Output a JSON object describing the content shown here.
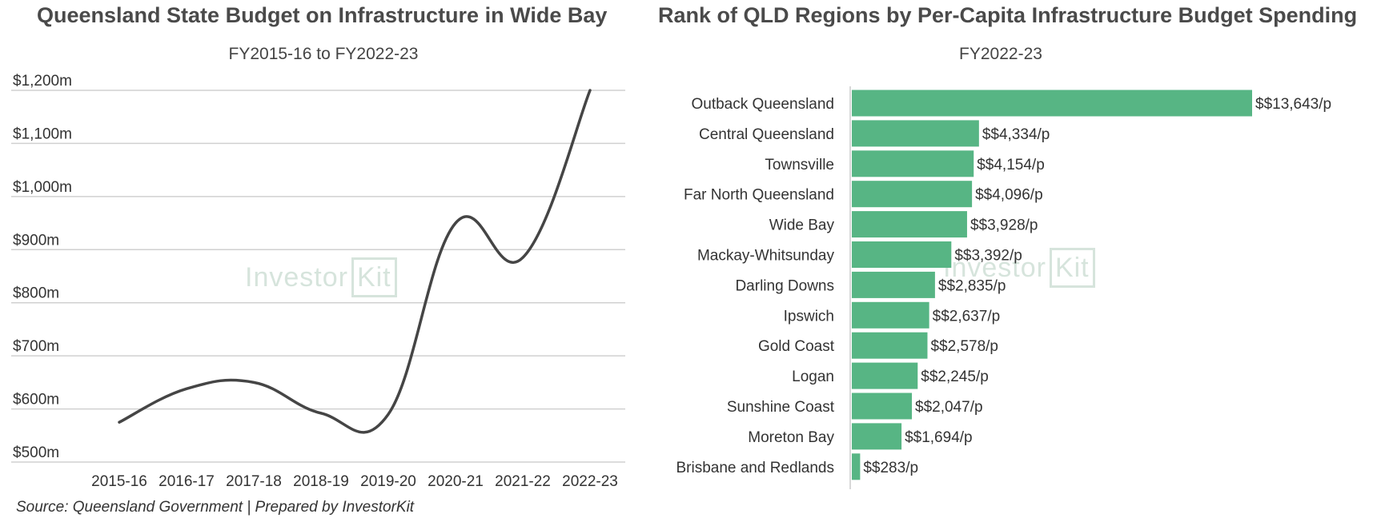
{
  "left_chart": {
    "title": "Queensland State Budget on Infrastructure in Wide Bay",
    "subtitle": "FY2015-16 to FY2022-23"
  },
  "right_chart": {
    "title": "Rank of  QLD Regions by Per-Capita Infrastructure Budget Spending",
    "subtitle": "FY2022-23"
  },
  "watermark": {
    "text": "Investor",
    "box_text": "Kit"
  },
  "source": "Source: Queensland Government | Prepared by InvestorKit",
  "colors": {
    "line": "#454545",
    "bar": "#57b584",
    "grid": "#d0d0d0"
  },
  "chart_data": [
    {
      "type": "line",
      "title": "Queensland State Budget on Infrastructure in Wide Bay",
      "subtitle": "FY2015-16 to FY2022-23",
      "categories": [
        "2015-16",
        "2016-17",
        "2017-18",
        "2018-19",
        "2019-20",
        "2020-21",
        "2021-22",
        "2022-23"
      ],
      "values": [
        575,
        638,
        650,
        592,
        590,
        950,
        885,
        1200
      ],
      "ylim": [
        500,
        1200
      ],
      "yticks": [
        500,
        600,
        700,
        800,
        900,
        1000,
        1100,
        1200
      ],
      "ytick_labels": [
        "$500m",
        "$600m",
        "$700m",
        "$800m",
        "$900m",
        "$1,000m",
        "$1,100m",
        "$1,200m"
      ],
      "grid": true
    },
    {
      "type": "bar",
      "orientation": "horizontal",
      "title": "Rank of  QLD Regions by Per-Capita Infrastructure Budget Spending",
      "subtitle": "FY2022-23",
      "categories": [
        "Outback Queensland",
        "Central Queensland",
        "Townsville",
        "Far North Queensland",
        "Wide Bay",
        "Mackay-Whitsunday",
        "Darling Downs",
        "Ipswich",
        "Gold Coast",
        "Logan",
        "Sunshine Coast",
        "Moreton Bay",
        "Brisbane and Redlands"
      ],
      "values": [
        13643,
        4334,
        4154,
        4096,
        3928,
        3392,
        2835,
        2637,
        2578,
        2245,
        2047,
        1694,
        283
      ],
      "data_labels": [
        "$$13,643/p",
        "$$4,334/p",
        "$$4,154/p",
        "$$4,096/p",
        "$$3,928/p",
        "$$3,392/p",
        "$$2,835/p",
        "$$2,637/p",
        "$$2,578/p",
        "$$2,245/p",
        "$$2,047/p",
        "$$1,694/p",
        "$$283/p"
      ]
    }
  ]
}
